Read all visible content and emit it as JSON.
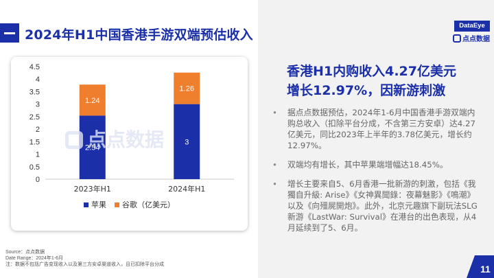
{
  "header": {
    "title": "2024年H1中国香港手游双端预估收入"
  },
  "brand": {
    "logo_text": "DataEye",
    "logo_sub": "点点数据",
    "watermark": "点点数据",
    "accent": "#1a2fa8"
  },
  "headline": {
    "line1": "香港H1内购收入4.27亿美元",
    "line2": "增长12.97%，因新游刺激"
  },
  "bullets": [
    "据点点数据预估，2024年1-6月中国香港手游双端内购总收入（扣除平台分成，不含第三方安卓）达4.27亿美元，同比2023年上半年的3.78亿美元，增长约12.97%。",
    "双端均有增长，其中苹果端增幅达18.45%。",
    "增长主要来自5、6月香港一批新游的刺激，包括《我獨自升級: Arise》《女神異聞錄：夜幕魅影》《鳴潮》以及《向殭屍開炮》。此外，北京元趣旗下副玩法SLG新游《LastWar: Survival》在港台的出色表现，从4月延续到了5、6月。"
  ],
  "footer": {
    "source": "Source：点点数据",
    "date_range": "Date Range：2024年1-6月",
    "note": "注：数据不包括广告变现收入以及第三方安卓渠道收入，且已扣除平台分成"
  },
  "page_number": "11",
  "chart_data": {
    "type": "bar",
    "stacked": true,
    "categories": [
      "2023年H1",
      "2024年H1"
    ],
    "series": [
      {
        "name": "苹果",
        "values": [
          2.54,
          3
        ],
        "labels": [
          "2.54",
          "3"
        ],
        "color": "#1a2fa8"
      },
      {
        "name": "谷歌（亿美元）",
        "values": [
          1.24,
          1.26
        ],
        "labels": [
          "1.24",
          "1.26"
        ],
        "color": "#f07f2d"
      }
    ],
    "ylim": [
      0,
      4.5
    ],
    "yticks": [
      "0",
      "0.5",
      "1",
      "1.5",
      "2",
      "2.5",
      "3",
      "3.5",
      "4",
      "4.5"
    ],
    "grid": false,
    "legend_position": "bottom"
  }
}
